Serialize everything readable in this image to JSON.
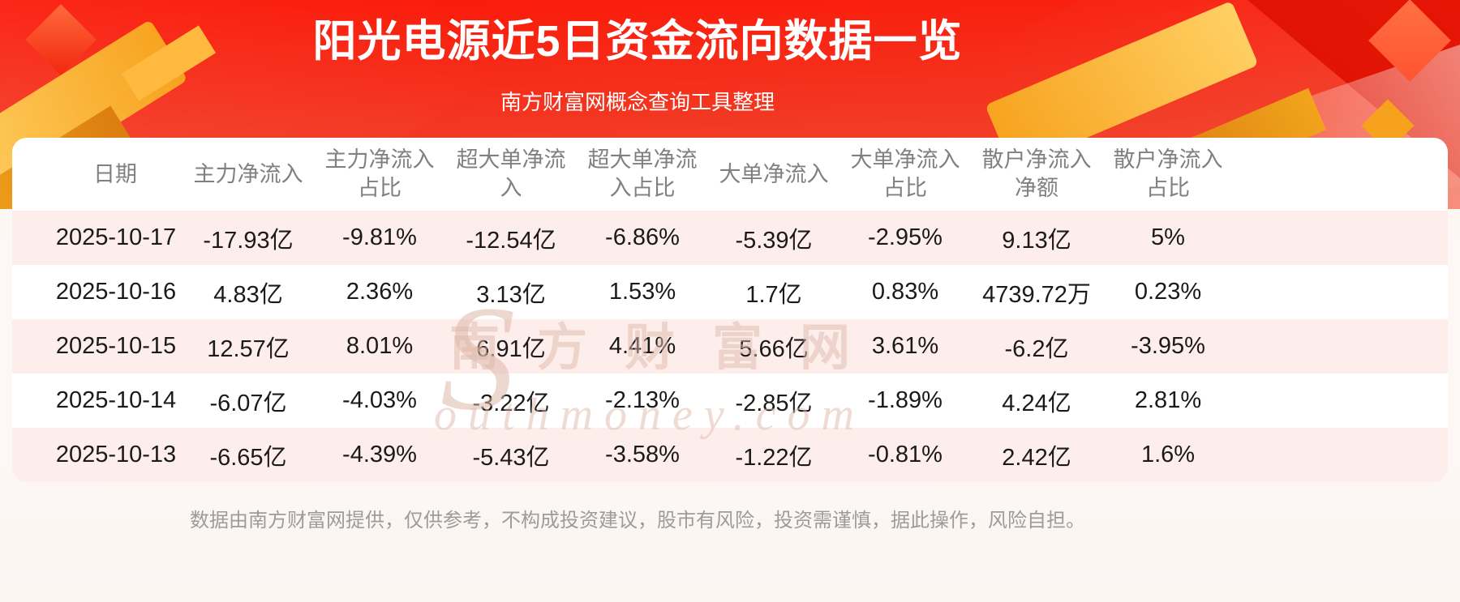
{
  "header": {
    "title": "阳光电源近5日资金流向数据一览",
    "subtitle": "南方财富网概念查询工具整理"
  },
  "chart_data": {
    "type": "table",
    "title": "阳光电源近5日资金流向数据一览",
    "columns": [
      "日期",
      "主力净流入",
      "主力净流入占比",
      "超大单净流入",
      "超大单净流入占比",
      "大单净流入",
      "大单净流入占比",
      "散户净流入净额",
      "散户净流入占比"
    ],
    "rows": [
      [
        "2025-10-17",
        "-17.93亿",
        "-9.81%",
        "-12.54亿",
        "-6.86%",
        "-5.39亿",
        "-2.95%",
        "9.13亿",
        "5%"
      ],
      [
        "2025-10-16",
        "4.83亿",
        "2.36%",
        "3.13亿",
        "1.53%",
        "1.7亿",
        "0.83%",
        "4739.72万",
        "0.23%"
      ],
      [
        "2025-10-15",
        "12.57亿",
        "8.01%",
        "6.91亿",
        "4.41%",
        "5.66亿",
        "3.61%",
        "-6.2亿",
        "-3.95%"
      ],
      [
        "2025-10-14",
        "-6.07亿",
        "-4.03%",
        "-3.22亿",
        "-2.13%",
        "-2.85亿",
        "-1.89%",
        "4.24亿",
        "2.81%"
      ],
      [
        "2025-10-13",
        "-6.65亿",
        "-4.39%",
        "-5.43亿",
        "-3.58%",
        "-1.22亿",
        "-0.81%",
        "2.42亿",
        "1.6%"
      ]
    ]
  },
  "watermark": {
    "initial": "S",
    "chinese": "南方财富网",
    "english": "outhmoney.com"
  },
  "footer": {
    "disclaimer": "数据由南方财富网提供，仅供参考，不构成投资建议，股市有风险，投资需谨慎，据此操作，风险自担。"
  },
  "colors": {
    "banner_red_top": "#fb1808",
    "banner_red_bottom": "#ef5238",
    "accent_gold": "#f7a21d",
    "corner_red": "#dc1403",
    "row_stripe": "#fdeeeb"
  }
}
